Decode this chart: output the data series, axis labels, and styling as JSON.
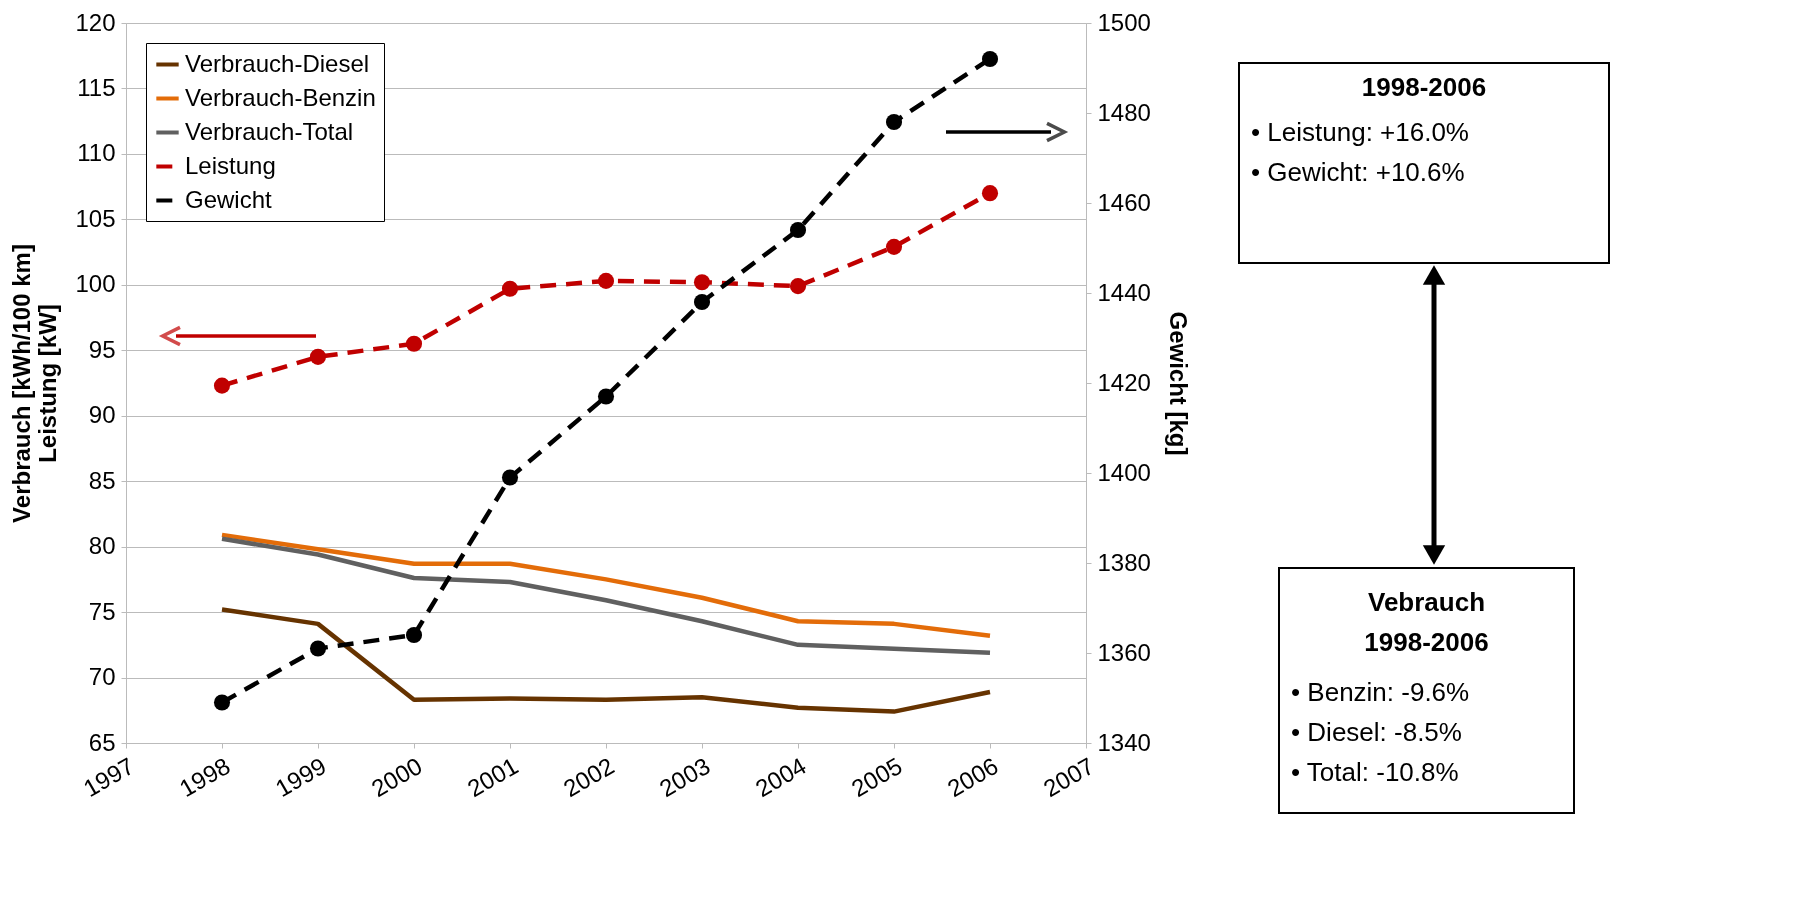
{
  "chart_data": {
    "type": "line",
    "ylabel": "Verbrauch [kWh/100 km]\nLeistung [kW]",
    "y2label": "Gewicht [kg]",
    "x": [
      1998,
      1999,
      2000,
      2001,
      2002,
      2003,
      2004,
      2005,
      2006
    ],
    "xlim": [
      1997,
      2007
    ],
    "xticks": [
      1997,
      1998,
      1999,
      2000,
      2001,
      2002,
      2003,
      2004,
      2005,
      2006,
      2007
    ],
    "ylim": [
      65,
      120
    ],
    "yticks": [
      65,
      70,
      75,
      80,
      85,
      90,
      95,
      100,
      105,
      110,
      115,
      120
    ],
    "y2lim": [
      1340,
      1500
    ],
    "y2ticks": [
      1340,
      1360,
      1380,
      1400,
      1420,
      1440,
      1460,
      1480,
      1500
    ],
    "grid": "y",
    "legend": "top left",
    "series": [
      {
        "name": "Verbrauch-Diesel",
        "color": "#663300",
        "line_style": "solid",
        "marker": "none",
        "values": [
          75.2,
          74.1,
          68.3,
          68.4,
          68.3,
          68.5,
          67.7,
          67.4,
          68.9
        ]
      },
      {
        "name": "Verbrauch-Benzin",
        "color": "#e36c09",
        "line_style": "solid",
        "marker": "none",
        "values": [
          80.9,
          79.8,
          78.7,
          78.7,
          77.5,
          76.1,
          74.3,
          74.1,
          73.2
        ]
      },
      {
        "name": "Verbrauch-Total",
        "color": "#606060",
        "line_style": "solid",
        "marker": "none",
        "values": [
          80.6,
          79.4,
          77.6,
          77.3,
          75.9,
          74.3,
          72.5,
          72.2,
          71.9
        ]
      },
      {
        "name": "Leistung",
        "color": "#c00000",
        "line_style": "dashed",
        "marker": "circle",
        "values": [
          92.3,
          94.5,
          95.5,
          99.7,
          100.3,
          100.2,
          99.9,
          102.9,
          107.0
        ]
      },
      {
        "name": "Gewicht",
        "color": "#000000",
        "line_style": "dashed",
        "marker": "circle",
        "axis": "y2",
        "values": [
          1349,
          1361,
          1364,
          1399,
          1417,
          1438,
          1454,
          1478,
          1492
        ]
      }
    ],
    "annotations": [
      "1998-2006",
      "• Leistung:  +16.0%",
      "• Gewicht:  +10.6%",
      "Vebrauch",
      "1998-2006",
      "• Benzin:  -9.6%",
      "• Diesel:  -8.5%",
      "• Total:  -10.8%"
    ]
  }
}
